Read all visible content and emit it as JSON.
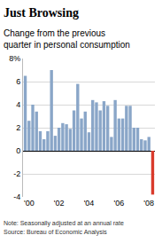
{
  "chart_data": {
    "type": "bar",
    "title": "Just Browsing",
    "subtitle": "Change from the previous quarter in personal consumption",
    "notes": [
      "Note: Seasonally adjusted at an annual rate",
      "Source: Bureau of Economic Analysis"
    ],
    "categories": [
      null,
      "'00",
      null,
      null,
      null,
      null,
      null,
      null,
      null,
      "'02",
      null,
      null,
      null,
      null,
      null,
      null,
      null,
      "'04",
      null,
      null,
      null,
      null,
      null,
      null,
      null,
      "'06",
      null,
      null,
      null,
      null,
      null,
      null,
      null,
      "'08",
      null
    ],
    "values": [
      6.5,
      2.6,
      4.0,
      3.4,
      1.7,
      1.0,
      1.7,
      7.0,
      1.3,
      2.0,
      2.4,
      2.3,
      1.9,
      3.5,
      5.8,
      2.8,
      3.4,
      1.6,
      4.4,
      4.2,
      3.5,
      4.3,
      3.9,
      1.2,
      4.4,
      2.8,
      2.8,
      3.9,
      3.9,
      2.0,
      2.0,
      1.0,
      0.9,
      1.2,
      -3.8
    ],
    "colors": [
      "#8aa6c8",
      "#8aa6c8",
      "#8aa6c8",
      "#8aa6c8",
      "#8aa6c8",
      "#8aa6c8",
      "#8aa6c8",
      "#8aa6c8",
      "#8aa6c8",
      "#8aa6c8",
      "#8aa6c8",
      "#8aa6c8",
      "#8aa6c8",
      "#8aa6c8",
      "#8aa6c8",
      "#8aa6c8",
      "#8aa6c8",
      "#8aa6c8",
      "#8aa6c8",
      "#8aa6c8",
      "#8aa6c8",
      "#8aa6c8",
      "#8aa6c8",
      "#8aa6c8",
      "#8aa6c8",
      "#8aa6c8",
      "#8aa6c8",
      "#8aa6c8",
      "#8aa6c8",
      "#8aa6c8",
      "#8aa6c8",
      "#8aa6c8",
      "#8aa6c8",
      "#8aa6c8",
      "#d93a2b"
    ],
    "ylim": [
      -4,
      8
    ],
    "yticks": [
      -4,
      -2,
      0,
      2,
      4,
      6,
      {
        "value": 8,
        "label": "8%"
      }
    ],
    "grid": true
  }
}
